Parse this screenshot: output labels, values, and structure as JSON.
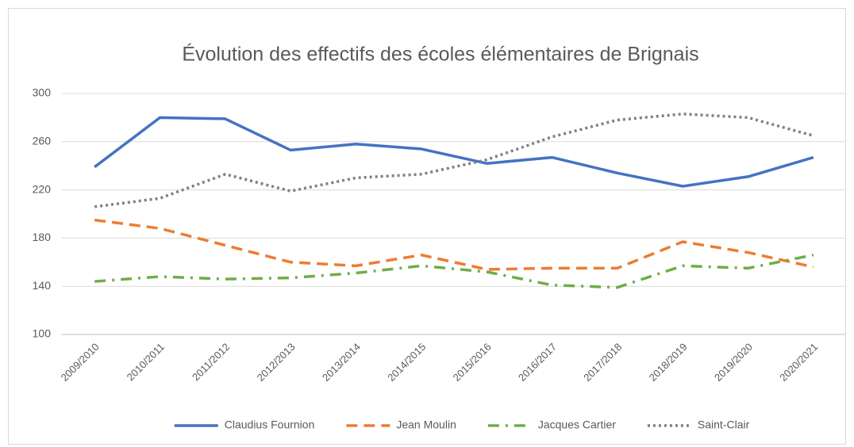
{
  "chart_data": {
    "type": "line",
    "title": "Évolution des effectifs des écoles élémentaires de Brignais",
    "categories": [
      "2009/2010",
      "2010/2011",
      "2011/2012",
      "2012/2013",
      "2013/2014",
      "2014/2015",
      "2015/2016",
      "2016/2017",
      "2017/2018",
      "2018/2019",
      "2019/2020",
      "2020/2021"
    ],
    "series": [
      {
        "name": "Claudius Fournion",
        "color": "#4472c4",
        "dash": "solid",
        "values": [
          239,
          280,
          279,
          253,
          258,
          254,
          242,
          247,
          234,
          223,
          231,
          247
        ]
      },
      {
        "name": "Jean Moulin",
        "color": "#ed7d31",
        "dash": "dashed",
        "values": [
          195,
          188,
          174,
          160,
          157,
          166,
          154,
          155,
          155,
          177,
          168,
          156
        ]
      },
      {
        "name": "Jacques Cartier",
        "color": "#70ad47",
        "dash": "dashdot",
        "values": [
          144,
          148,
          146,
          147,
          151,
          157,
          152,
          141,
          139,
          157,
          155,
          166
        ]
      },
      {
        "name": "Saint-Clair",
        "color": "#7f7f7f",
        "dash": "dotted",
        "values": [
          206,
          213,
          233,
          219,
          230,
          233,
          245,
          264,
          278,
          283,
          280,
          265
        ]
      }
    ],
    "ylim": [
      100,
      300
    ],
    "yticks": [
      100,
      140,
      180,
      220,
      260,
      300
    ],
    "grid": true,
    "legend": "bottom"
  }
}
